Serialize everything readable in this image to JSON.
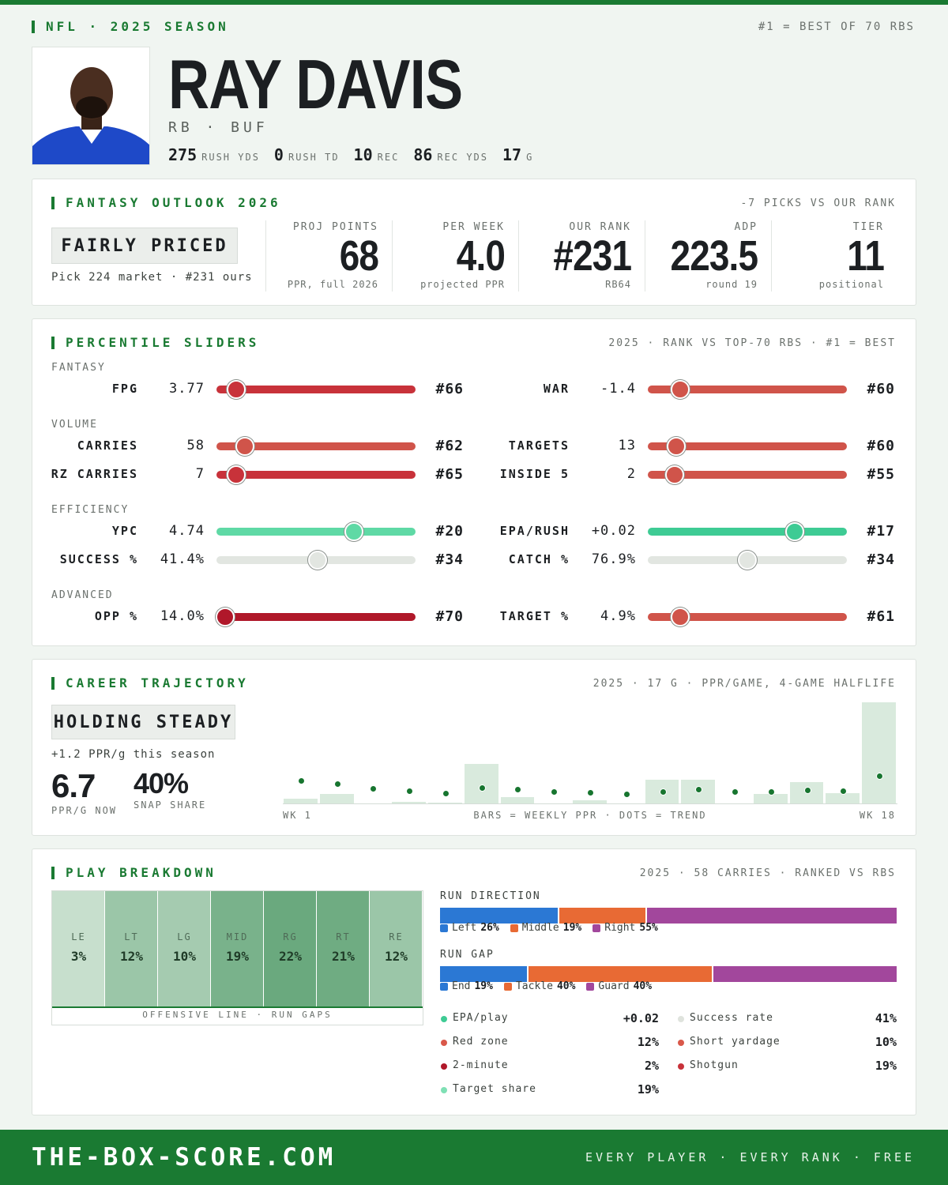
{
  "header": {
    "league": "NFL · 2025 SEASON",
    "note": "#1 = BEST OF 70 RBS",
    "name": "RAY DAVIS",
    "position": "RB · BUF",
    "stats": [
      {
        "value": "275",
        "label": "RUSH YDS"
      },
      {
        "value": "0",
        "label": "RUSH TD"
      },
      {
        "value": "10",
        "label": "REC"
      },
      {
        "value": "86",
        "label": "REC YDS"
      },
      {
        "value": "17",
        "label": "G"
      }
    ]
  },
  "outlook": {
    "title": "FANTASY OUTLOOK 2026",
    "note": "-7 PICKS VS OUR RANK",
    "verdict": "FAIRLY PRICED",
    "verdict_note": "Pick 224 market · #231 ours",
    "metrics": [
      {
        "label": "PROJ POINTS",
        "value": "68",
        "sub": "PPR, full 2026"
      },
      {
        "label": "PER WEEK",
        "value": "4.0",
        "sub": "projected PPR"
      },
      {
        "label": "OUR RANK",
        "value": "#231",
        "sub": "RB64"
      },
      {
        "label": "ADP",
        "value": "223.5",
        "sub": "round 19"
      },
      {
        "label": "TIER",
        "value": "11",
        "sub": "positional"
      }
    ]
  },
  "sliders": {
    "title": "PERCENTILE SLIDERS",
    "note": "2025 · RANK VS TOP-70 RBS · #1 = BEST",
    "groups": [
      {
        "name": "FANTASY",
        "rows": [
          [
            {
              "label": "FPG",
              "value": "3.77",
              "rank": "#66",
              "percentile": 6
            },
            {
              "label": "WAR",
              "value": "-1.4",
              "rank": "#60",
              "percentile": 13
            }
          ]
        ]
      },
      {
        "name": "VOLUME",
        "rows": [
          [
            {
              "label": "CARRIES",
              "value": "58",
              "rank": "#62",
              "percentile": 11
            },
            {
              "label": "TARGETS",
              "value": "13",
              "rank": "#60",
              "percentile": 11
            }
          ],
          [
            {
              "label": "RZ CARRIES",
              "value": "7",
              "rank": "#65",
              "percentile": 6
            },
            {
              "label": "INSIDE 5",
              "value": "2",
              "rank": "#55",
              "percentile": 10
            }
          ]
        ]
      },
      {
        "name": "EFFICIENCY",
        "rows": [
          [
            {
              "label": "YPC",
              "value": "4.74",
              "rank": "#20",
              "percentile": 71
            },
            {
              "label": "EPA/RUSH",
              "value": "+0.02",
              "rank": "#17",
              "percentile": 76
            }
          ],
          [
            {
              "label": "SUCCESS %",
              "value": "41.4%",
              "rank": "#34",
              "percentile": 51
            },
            {
              "label": "CATCH %",
              "value": "76.9%",
              "rank": "#34",
              "percentile": 50
            }
          ]
        ]
      },
      {
        "name": "ADVANCED",
        "rows": [
          [
            {
              "label": "OPP %",
              "value": "14.0%",
              "rank": "#70",
              "percentile": 0
            },
            {
              "label": "TARGET %",
              "value": "4.9%",
              "rank": "#61",
              "percentile": 13
            }
          ]
        ]
      }
    ]
  },
  "career": {
    "title": "CAREER TRAJECTORY",
    "note": "2025 · 17 G · PPR/GAME, 4-GAME HALFLIFE",
    "verdict": "HOLDING STEADY",
    "delta": "+1.2 PPR/g this season",
    "stats": [
      {
        "value": "6.7",
        "label": "PPR/G NOW"
      },
      {
        "value": "40%",
        "label": "SNAP SHARE"
      }
    ],
    "chart": {
      "type": "bar",
      "x_start": "WK 1",
      "caption": "BARS = WEEKLY PPR · DOTS = TREND",
      "x_end": "WK 18",
      "ylim": [
        0,
        25
      ],
      "bars": [
        1.2,
        2.3,
        0,
        0.4,
        0.2,
        9.6,
        1.5,
        0,
        0.8,
        0,
        5.8,
        5.9,
        0,
        2.3,
        5.2,
        2.5,
        24.8
      ],
      "trend": [
        5.6,
        4.8,
        3.7,
        3.1,
        2.5,
        3.8,
        3.5,
        2.9,
        2.7,
        2.3,
        2.9,
        3.5,
        2.9,
        2.9,
        3.3,
        3.1,
        6.7
      ]
    }
  },
  "breakdown": {
    "title": "PLAY BREAKDOWN",
    "note": "2025 · 58 CARRIES · RANKED VS RBS",
    "gaps": {
      "labels": [
        "LE",
        "LT",
        "LG",
        "MID",
        "RG",
        "RT",
        "RE"
      ],
      "values": [
        3,
        12,
        10,
        19,
        22,
        21,
        12
      ],
      "value_labels": [
        "3%",
        "12%",
        "10%",
        "19%",
        "22%",
        "21%",
        "12%"
      ],
      "caption": "OFFENSIVE LINE · RUN GAPS"
    },
    "direction": {
      "title": "RUN DIRECTION",
      "series": [
        {
          "name": "Left",
          "color": "#2b78d4",
          "value": 26,
          "value_label": "26%"
        },
        {
          "name": "Middle",
          "color": "#e86a34",
          "value": 19,
          "value_label": "19%"
        },
        {
          "name": "Right",
          "color": "#a2479c",
          "value": 55,
          "value_label": "55%"
        }
      ]
    },
    "run_gap": {
      "title": "RUN GAP",
      "series": [
        {
          "name": "End",
          "color": "#2b78d4",
          "value": 19,
          "value_label": "19%"
        },
        {
          "name": "Tackle",
          "color": "#e86a34",
          "value": 40,
          "value_label": "40%"
        },
        {
          "name": "Guard",
          "color": "#a2479c",
          "value": 40,
          "value_label": "40%"
        }
      ]
    },
    "stats": [
      {
        "label": "EPA/play",
        "value": "+0.02",
        "color": "#3ecb94"
      },
      {
        "label": "Success rate",
        "value": "41%",
        "color": "#dfe3dd"
      },
      {
        "label": "Red zone",
        "value": "12%",
        "color": "#d9584a"
      },
      {
        "label": "Short yardage",
        "value": "10%",
        "color": "#d9584a"
      },
      {
        "label": "2-minute",
        "value": "2%",
        "color": "#b0182a"
      },
      {
        "label": "Shotgun",
        "value": "19%",
        "color": "#c8323a"
      },
      {
        "label": "Target share",
        "value": "19%",
        "color": "#7fe0b5"
      }
    ]
  },
  "footer": {
    "site": "THE-BOX-SCORE.COM",
    "tagline": "EVERY PLAYER · EVERY RANK · FREE"
  }
}
